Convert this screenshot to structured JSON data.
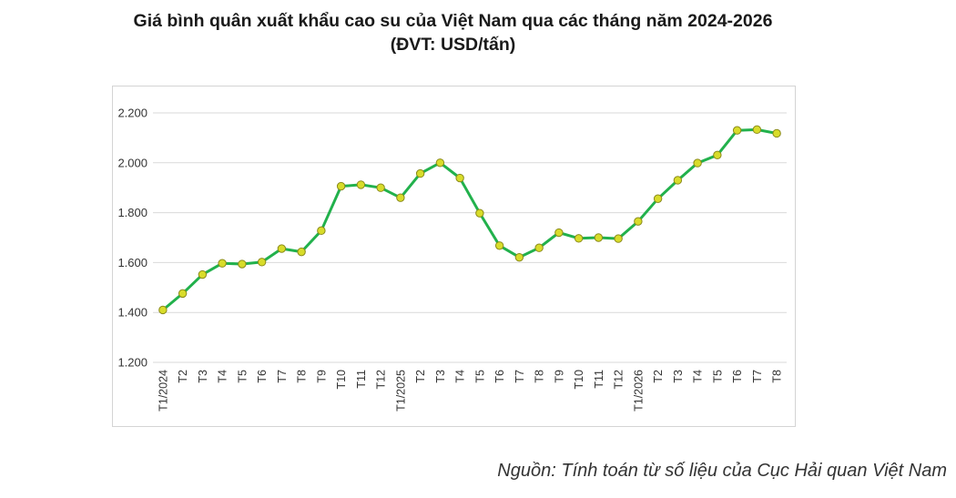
{
  "title_line1": "Giá bình quân xuất khẩu cao su của Việt Nam qua các tháng năm 2024-2026",
  "title_line2": "(ĐVT: USD/tấn)",
  "source": "Nguồn: Tính toán từ số liệu của Cục Hải quan Việt Nam",
  "colors": {
    "line": "#22b14c",
    "marker_fill": "#d8dc2a",
    "marker_stroke": "#8a8a1a",
    "grid": "#d9d9d9"
  },
  "chart_data": {
    "type": "line",
    "categories": [
      "T1/2024",
      "T2",
      "T3",
      "T4",
      "T5",
      "T6",
      "T7",
      "T8",
      "T9",
      "T10",
      "T11",
      "T12",
      "T1/2025",
      "T2",
      "T3",
      "T4",
      "T5",
      "T6",
      "T7",
      "T8",
      "T9",
      "T10",
      "T11",
      "T12",
      "T1/2026",
      "T2",
      "T3",
      "T4",
      "T5",
      "T6",
      "T7",
      "T8"
    ],
    "series": [
      {
        "values": [
          1410,
          1476,
          1552,
          1597,
          1594,
          1602,
          1656,
          1643,
          1728,
          1906,
          1912,
          1900,
          1860,
          1957,
          2000,
          1939,
          1798,
          1668,
          1621,
          1659,
          1720,
          1697,
          1700,
          1696,
          1765,
          1856,
          1930,
          1999,
          2031,
          2130,
          2133,
          2118
        ]
      }
    ],
    "ylim": [
      1200,
      2200
    ],
    "yticks": [
      1200,
      1400,
      1600,
      1800,
      2000,
      2200
    ],
    "ytick_labels": [
      "1.200",
      "1.400",
      "1.600",
      "1.800",
      "2.000",
      "2.200"
    ],
    "grid": true,
    "legend": "none"
  }
}
